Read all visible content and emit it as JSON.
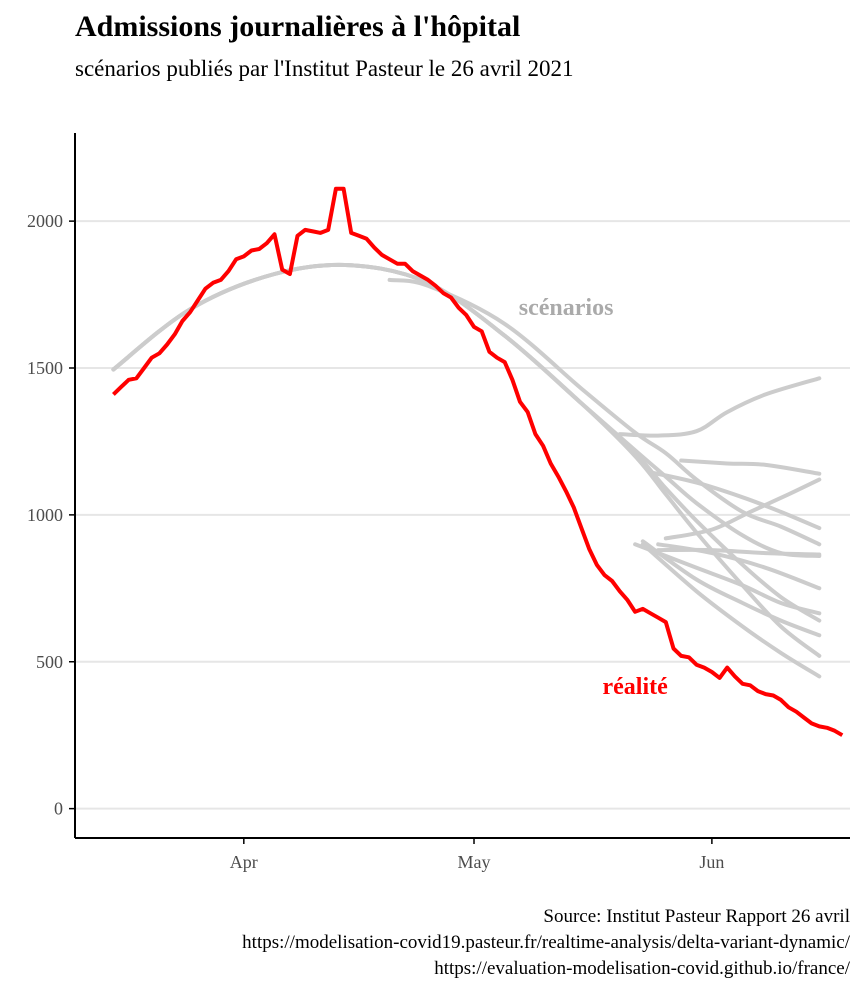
{
  "title": "Admissions journalières à l'hôpital",
  "subtitle": "scénarios publiés par l'Institut Pasteur le 26 avril 2021",
  "caption": [
    "Source: Institut Pasteur Rapport 26 avril",
    "https://modelisation-covid19.pasteur.fr/realtime-analysis/delta-variant-dynamic/",
    "https://evaluation-modelisation-covid.github.io/france/"
  ],
  "colors": {
    "reality": "#ff0000",
    "scenarios": "#cccccc",
    "grid": "#e6e6e6",
    "axis": "#000000",
    "tick_text": "#4d4d4d"
  },
  "chart_data": {
    "type": "line",
    "x_axis": {
      "type": "date",
      "ticks": [
        {
          "label": "Apr",
          "date": "2021-04-01"
        },
        {
          "label": "May",
          "date": "2021-05-01"
        },
        {
          "label": "Jun",
          "date": "2021-06-01"
        }
      ],
      "range": [
        "2021-03-10",
        "2021-06-19"
      ]
    },
    "y_axis": {
      "ticks": [
        0,
        500,
        1000,
        1500,
        2000
      ],
      "range": [
        -100,
        2300
      ]
    },
    "grid": {
      "horizontal": true,
      "vertical": false
    },
    "annotations": [
      {
        "text": "scénarios",
        "color": "#aaaaaa",
        "date": "2021-05-13",
        "y": 1680
      },
      {
        "text": "réalité",
        "color": "#ff0000",
        "date": "2021-05-22",
        "y": 390
      }
    ],
    "reality": {
      "start": "2021-03-15",
      "values": [
        1410,
        1435,
        1460,
        1465,
        1500,
        1535,
        1550,
        1580,
        1615,
        1660,
        1690,
        1730,
        1770,
        1790,
        1800,
        1830,
        1870,
        1880,
        1900,
        1905,
        1925,
        1955,
        1835,
        1820,
        1950,
        1970,
        1965,
        1960,
        1970,
        2110,
        2110,
        1960,
        1950,
        1940,
        1910,
        1885,
        1870,
        1855,
        1855,
        1830,
        1815,
        1800,
        1780,
        1755,
        1740,
        1705,
        1680,
        1640,
        1625,
        1555,
        1535,
        1520,
        1460,
        1385,
        1350,
        1275,
        1235,
        1175,
        1130,
        1080,
        1025,
        955,
        885,
        830,
        795,
        775,
        740,
        710,
        670,
        680,
        665,
        650,
        635,
        545,
        520,
        515,
        490,
        480,
        465,
        445,
        480,
        450,
        425,
        420,
        400,
        390,
        385,
        370,
        345,
        330,
        310,
        290,
        280,
        275,
        265,
        250
      ]
    },
    "scenarios": [
      {
        "points": [
          [
            "2021-03-15",
            1495
          ],
          [
            "2021-03-25",
            1700
          ],
          [
            "2021-04-05",
            1820
          ],
          [
            "2021-04-15",
            1850
          ],
          [
            "2021-04-25",
            1790
          ],
          [
            "2021-05-05",
            1610
          ],
          [
            "2021-05-15",
            1380
          ],
          [
            "2021-05-22",
            1220
          ],
          [
            "2021-05-26",
            1130
          ],
          [
            "2021-05-30",
            1040
          ],
          [
            "2021-06-05",
            930
          ],
          [
            "2021-06-10",
            870
          ],
          [
            "2021-06-15",
            860
          ]
        ]
      },
      {
        "points": [
          [
            "2021-03-15",
            1495
          ],
          [
            "2021-03-25",
            1700
          ],
          [
            "2021-04-05",
            1820
          ],
          [
            "2021-04-15",
            1850
          ],
          [
            "2021-04-25",
            1790
          ],
          [
            "2021-05-05",
            1610
          ],
          [
            "2021-05-15",
            1380
          ],
          [
            "2021-05-22",
            1210
          ],
          [
            "2021-05-26",
            1090
          ],
          [
            "2021-05-30",
            980
          ],
          [
            "2021-06-05",
            830
          ],
          [
            "2021-06-10",
            720
          ],
          [
            "2021-06-15",
            640
          ]
        ]
      },
      {
        "points": [
          [
            "2021-03-15",
            1495
          ],
          [
            "2021-03-25",
            1700
          ],
          [
            "2021-04-05",
            1820
          ],
          [
            "2021-04-15",
            1850
          ],
          [
            "2021-04-25",
            1790
          ],
          [
            "2021-05-05",
            1610
          ],
          [
            "2021-05-15",
            1380
          ],
          [
            "2021-05-22",
            1200
          ],
          [
            "2021-05-26",
            1070
          ],
          [
            "2021-05-30",
            940
          ],
          [
            "2021-06-05",
            760
          ],
          [
            "2021-06-10",
            620
          ],
          [
            "2021-06-15",
            520
          ]
        ]
      },
      {
        "points": [
          [
            "2021-04-20",
            1800
          ],
          [
            "2021-04-25",
            1780
          ],
          [
            "2021-05-05",
            1650
          ],
          [
            "2021-05-15",
            1430
          ],
          [
            "2021-05-22",
            1280
          ],
          [
            "2021-05-26",
            1210
          ],
          [
            "2021-05-30",
            1120
          ],
          [
            "2021-06-05",
            1010
          ],
          [
            "2021-06-10",
            960
          ],
          [
            "2021-06-15",
            900
          ]
        ]
      },
      {
        "points": [
          [
            "2021-05-20",
            1275
          ],
          [
            "2021-05-25",
            1270
          ],
          [
            "2021-05-30",
            1285
          ],
          [
            "2021-06-03",
            1350
          ],
          [
            "2021-06-08",
            1410
          ],
          [
            "2021-06-15",
            1465
          ]
        ]
      },
      {
        "points": [
          [
            "2021-05-28",
            1185
          ],
          [
            "2021-06-03",
            1175
          ],
          [
            "2021-06-08",
            1170
          ],
          [
            "2021-06-15",
            1140
          ]
        ]
      },
      {
        "points": [
          [
            "2021-05-24",
            1145
          ],
          [
            "2021-05-30",
            1110
          ],
          [
            "2021-06-05",
            1060
          ],
          [
            "2021-06-10",
            1010
          ],
          [
            "2021-06-15",
            955
          ]
        ]
      },
      {
        "points": [
          [
            "2021-05-26",
            920
          ],
          [
            "2021-06-01",
            950
          ],
          [
            "2021-06-06",
            1010
          ],
          [
            "2021-06-11",
            1070
          ],
          [
            "2021-06-15",
            1120
          ]
        ]
      },
      {
        "points": [
          [
            "2021-05-25",
            880
          ],
          [
            "2021-06-01",
            880
          ],
          [
            "2021-06-08",
            870
          ],
          [
            "2021-06-15",
            865
          ]
        ]
      },
      {
        "points": [
          [
            "2021-05-25",
            900
          ],
          [
            "2021-06-01",
            870
          ],
          [
            "2021-06-08",
            820
          ],
          [
            "2021-06-15",
            750
          ]
        ]
      },
      {
        "points": [
          [
            "2021-05-22",
            900
          ],
          [
            "2021-05-30",
            820
          ],
          [
            "2021-06-05",
            760
          ],
          [
            "2021-06-10",
            700
          ],
          [
            "2021-06-15",
            665
          ]
        ]
      },
      {
        "points": [
          [
            "2021-05-23",
            910
          ],
          [
            "2021-05-30",
            780
          ],
          [
            "2021-06-05",
            700
          ],
          [
            "2021-06-10",
            640
          ],
          [
            "2021-06-15",
            590
          ]
        ]
      },
      {
        "points": [
          [
            "2021-05-23",
            900
          ],
          [
            "2021-05-30",
            740
          ],
          [
            "2021-06-05",
            620
          ],
          [
            "2021-06-10",
            530
          ],
          [
            "2021-06-15",
            450
          ]
        ]
      }
    ]
  }
}
